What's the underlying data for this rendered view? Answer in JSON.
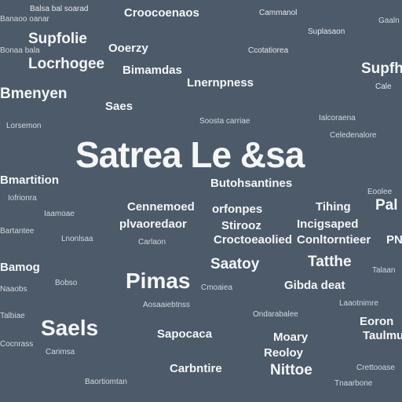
{
  "words": [
    {
      "text": "Balsa bal soarad",
      "size": "s"
    },
    {
      "text": "Croocoenaos",
      "size": "m"
    },
    {
      "text": "Cammanol",
      "size": "s"
    },
    {
      "text": "Supfolie",
      "size": "l"
    },
    {
      "text": "Ooerzy",
      "size": "m"
    },
    {
      "text": "Ccotatiorea",
      "size": "s"
    },
    {
      "text": "Suplasaon",
      "size": "s"
    },
    {
      "text": "Locrhogee",
      "size": "l"
    },
    {
      "text": "Bimamdas",
      "size": "m"
    },
    {
      "text": "Supfh",
      "size": "l"
    },
    {
      "text": "Bmenyen",
      "size": "l"
    },
    {
      "text": "Lnernpness",
      "size": "m"
    },
    {
      "text": "Saes",
      "size": "m"
    },
    {
      "text": "Cale",
      "size": "s"
    },
    {
      "text": "Satrea Le &sa",
      "size": "xxl"
    },
    {
      "text": "Butohsantines",
      "size": "m"
    },
    {
      "text": "Bmartition",
      "size": "m"
    },
    {
      "text": "Cennemoed",
      "size": "m"
    },
    {
      "text": "orfonpes",
      "size": "m"
    },
    {
      "text": "Tihing",
      "size": "m"
    },
    {
      "text": "Pal",
      "size": "l"
    },
    {
      "text": "plvaoredaor",
      "size": "m"
    },
    {
      "text": "Stirooz",
      "size": "m"
    },
    {
      "text": "Incigsaped",
      "size": "m"
    },
    {
      "text": "Croctoeaolied",
      "size": "m"
    },
    {
      "text": "Conltorntieer",
      "size": "m"
    },
    {
      "text": "PN",
      "size": "m"
    },
    {
      "text": "Bamog",
      "size": "m"
    },
    {
      "text": "Saatoy",
      "size": "l"
    },
    {
      "text": "Tatthe",
      "size": "l"
    },
    {
      "text": "Pimas",
      "size": "xl"
    },
    {
      "text": "Gibda deat",
      "size": "m"
    },
    {
      "text": "Saels",
      "size": "xl"
    },
    {
      "text": "Eoron",
      "size": "m"
    },
    {
      "text": "Sapocaca",
      "size": "m"
    },
    {
      "text": "Moary",
      "size": "m"
    },
    {
      "text": "Taulmu",
      "size": "m"
    },
    {
      "text": "Carbntire",
      "size": "m"
    },
    {
      "text": "Reoloy",
      "size": "m"
    },
    {
      "text": "Nittoe",
      "size": "l"
    },
    {
      "text": "Banaoo oanar",
      "size": "s"
    },
    {
      "text": "Bonaa bala",
      "size": "s"
    },
    {
      "text": "Gaaln",
      "size": "s"
    },
    {
      "text": "Lorsemon",
      "size": "s"
    },
    {
      "text": "Soosta carriae",
      "size": "s"
    },
    {
      "text": "Ialcoraena",
      "size": "s"
    },
    {
      "text": "Celedenalore",
      "size": "s"
    },
    {
      "text": "Iofrionra",
      "size": "s"
    },
    {
      "text": "Iaamoae",
      "size": "s"
    },
    {
      "text": "Bartantee",
      "size": "s"
    },
    {
      "text": "Lnonlsaa",
      "size": "s"
    },
    {
      "text": "Carlaon",
      "size": "s"
    },
    {
      "text": "Eoolee",
      "size": "s"
    },
    {
      "text": "Talaan",
      "size": "s"
    },
    {
      "text": "Bobso",
      "size": "s"
    },
    {
      "text": "Naaobs",
      "size": "s"
    },
    {
      "text": "Cmoaiea",
      "size": "s"
    },
    {
      "text": "Aosaaiebtnss",
      "size": "s"
    },
    {
      "text": "Talbiae",
      "size": "s"
    },
    {
      "text": "Ondarabalee",
      "size": "s"
    },
    {
      "text": "Laaotnimre",
      "size": "s"
    },
    {
      "text": "Carimsa",
      "size": "s"
    },
    {
      "text": "Cocnrass",
      "size": "s"
    },
    {
      "text": "Baortiomtan",
      "size": "s"
    },
    {
      "text": "Crettooase",
      "size": "s"
    },
    {
      "text": "Tnaarbone",
      "size": "s"
    }
  ]
}
